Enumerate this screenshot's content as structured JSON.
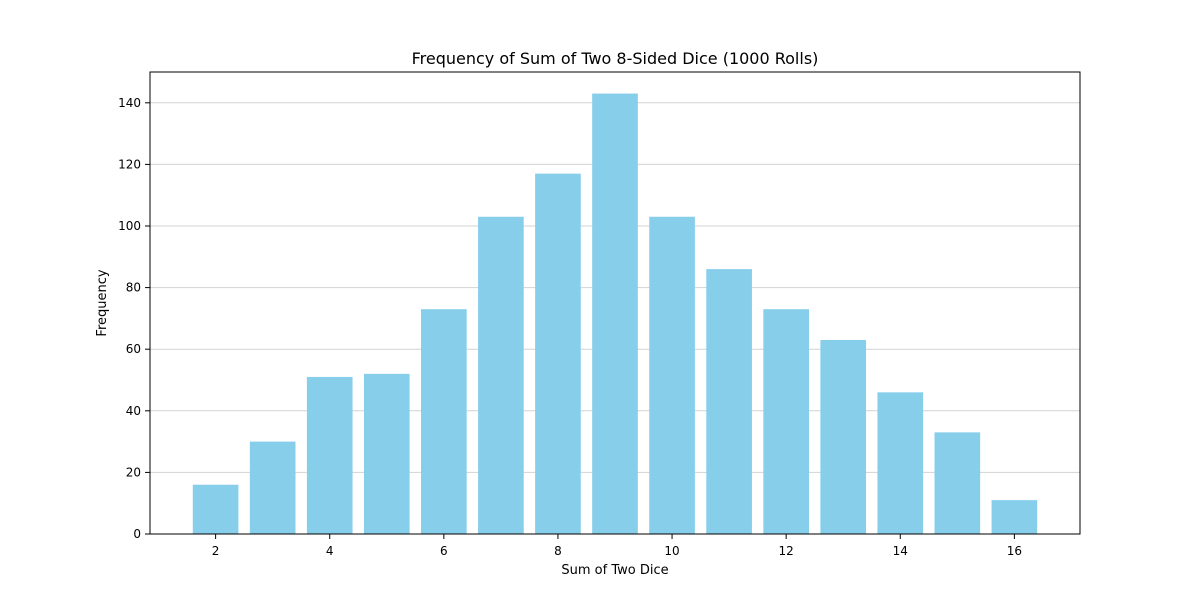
{
  "chart_data": {
    "type": "bar",
    "title": "Frequency of Sum of Two 8-Sided Dice (1000 Rolls)",
    "xlabel": "Sum of Two Dice",
    "ylabel": "Frequency",
    "categories": [
      2,
      3,
      4,
      5,
      6,
      7,
      8,
      9,
      10,
      11,
      12,
      13,
      14,
      15,
      16
    ],
    "values": [
      16,
      30,
      51,
      52,
      73,
      103,
      117,
      143,
      103,
      86,
      73,
      63,
      46,
      33,
      11
    ],
    "xlim": [
      0.85,
      17.15
    ],
    "ylim": [
      0,
      150
    ],
    "xticks": [
      2,
      4,
      6,
      8,
      10,
      12,
      14,
      16
    ],
    "yticks": [
      0,
      20,
      40,
      60,
      80,
      100,
      120,
      140
    ],
    "grid": "y-axis",
    "legend": "none",
    "bar_color": "#87CEEB",
    "grid_color": "#d3d3d3"
  }
}
